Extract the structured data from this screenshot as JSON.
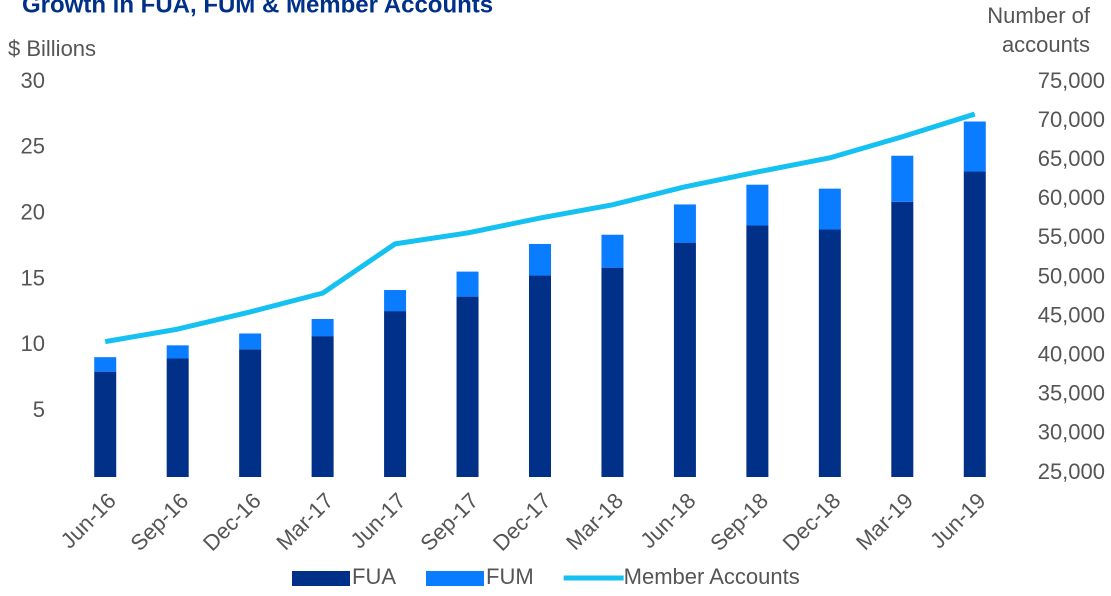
{
  "chart_data": {
    "type": "bar",
    "title": "Growth in FUA, FUM & Member Accounts",
    "y_label": "$ Billions",
    "y2_label": [
      "Number of",
      "accounts"
    ],
    "stacked": true,
    "categories": [
      "Jun-16",
      "Sep-16",
      "Dec-16",
      "Mar-17",
      "Jun-17",
      "Sep-17",
      "Dec-17",
      "Mar-18",
      "Jun-18",
      "Sep-18",
      "Dec-18",
      "Mar-19",
      "Jun-19"
    ],
    "series": [
      {
        "name": "FUA",
        "type": "bar",
        "color": "#003087",
        "values": [
          8.0,
          9.0,
          9.7,
          10.7,
          12.6,
          13.7,
          15.3,
          15.9,
          17.8,
          19.1,
          18.8,
          20.9,
          23.2
        ]
      },
      {
        "name": "FUM",
        "type": "bar",
        "color": "#0a7cff",
        "values": [
          1.1,
          1.0,
          1.2,
          1.3,
          1.6,
          1.9,
          2.4,
          2.5,
          2.9,
          3.1,
          3.1,
          3.5,
          3.8
        ]
      },
      {
        "name": "Member Accounts",
        "type": "line",
        "axis": "y2",
        "color": "#14c1f0",
        "values": [
          41800,
          43400,
          45600,
          48000,
          54300,
          55700,
          57600,
          59300,
          61600,
          63500,
          65300,
          68000,
          70900
        ]
      }
    ],
    "ylim": [
      0,
      30
    ],
    "yticks": [
      5,
      10,
      15,
      20,
      25,
      30
    ],
    "y2lim": [
      25000,
      75000
    ],
    "y2ticks": [
      {
        "value": 25000,
        "label": "25,000"
      },
      {
        "value": 30000,
        "label": "30,000"
      },
      {
        "value": 35000,
        "label": "35,000"
      },
      {
        "value": 40000,
        "label": "40,000"
      },
      {
        "value": 45000,
        "label": "45,000"
      },
      {
        "value": 50000,
        "label": "50,000"
      },
      {
        "value": 55000,
        "label": "55,000"
      },
      {
        "value": 60000,
        "label": "60,000"
      },
      {
        "value": 65000,
        "label": "65,000"
      },
      {
        "value": 70000,
        "label": "70,000"
      },
      {
        "value": 75000,
        "label": "75,000"
      }
    ],
    "legend": "bottom"
  }
}
